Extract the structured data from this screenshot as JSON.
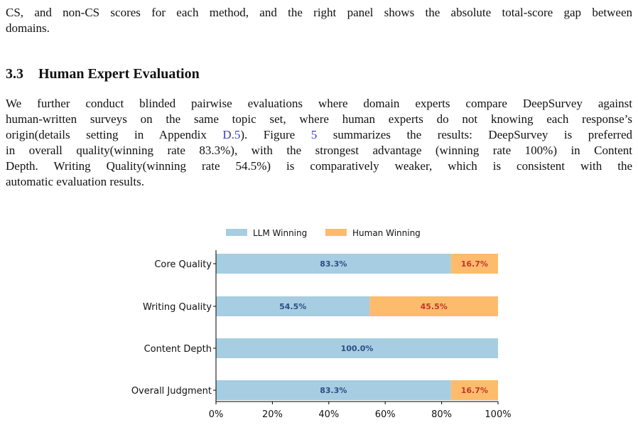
{
  "intro": {
    "lines": [
      "CS, and non-CS scores for each method, and the right panel shows the absolute total-score gap between",
      "domains."
    ]
  },
  "section": {
    "number": "3.3",
    "title": "Human Expert Evaluation"
  },
  "body": {
    "line1": "We further conduct blinded pairwise evaluations where domain experts compare DeepSurvey against",
    "line2": "human-written surveys on the same topic set, where human experts do not knowing each response’s",
    "line3_a": "origin(details setting in Appendix ",
    "line3_ref": "D.5",
    "line3_b": ").  Figure ",
    "line3_fig": "5",
    "line3_c": " summarizes the results: DeepSurvey is preferred",
    "line4": "in overall quality(winning rate 83.3%), with the strongest advantage (winning rate 100%) in Content",
    "line5": "Depth.  Writing Quality(winning rate 54.5%) is comparatively weaker, which is consistent with the",
    "line6": "automatic evaluation results."
  },
  "colors": {
    "llm": "#a6cde2",
    "human": "#fdbb6c",
    "llm_label": "#2c4f84",
    "human_label": "#c0392b"
  },
  "chart_data": {
    "type": "bar",
    "orientation": "horizontal",
    "stacked": true,
    "categories": [
      "Core Quality",
      "Writing Quality",
      "Content Depth",
      "Overall Judgment"
    ],
    "series": [
      {
        "name": "LLM Winning",
        "values": [
          83.3,
          54.5,
          100.0,
          83.3
        ],
        "labels": [
          "83.3%",
          "54.5%",
          "100.0%",
          "83.3%"
        ]
      },
      {
        "name": "Human Winning",
        "values": [
          16.7,
          45.5,
          0.0,
          16.7
        ],
        "labels": [
          "16.7%",
          "45.5%",
          "",
          "16.7%"
        ]
      }
    ],
    "xticks": [
      "0%",
      "20%",
      "40%",
      "60%",
      "80%",
      "100%"
    ],
    "xlim": [
      0,
      100
    ],
    "legend": "top-center",
    "grid": false
  }
}
